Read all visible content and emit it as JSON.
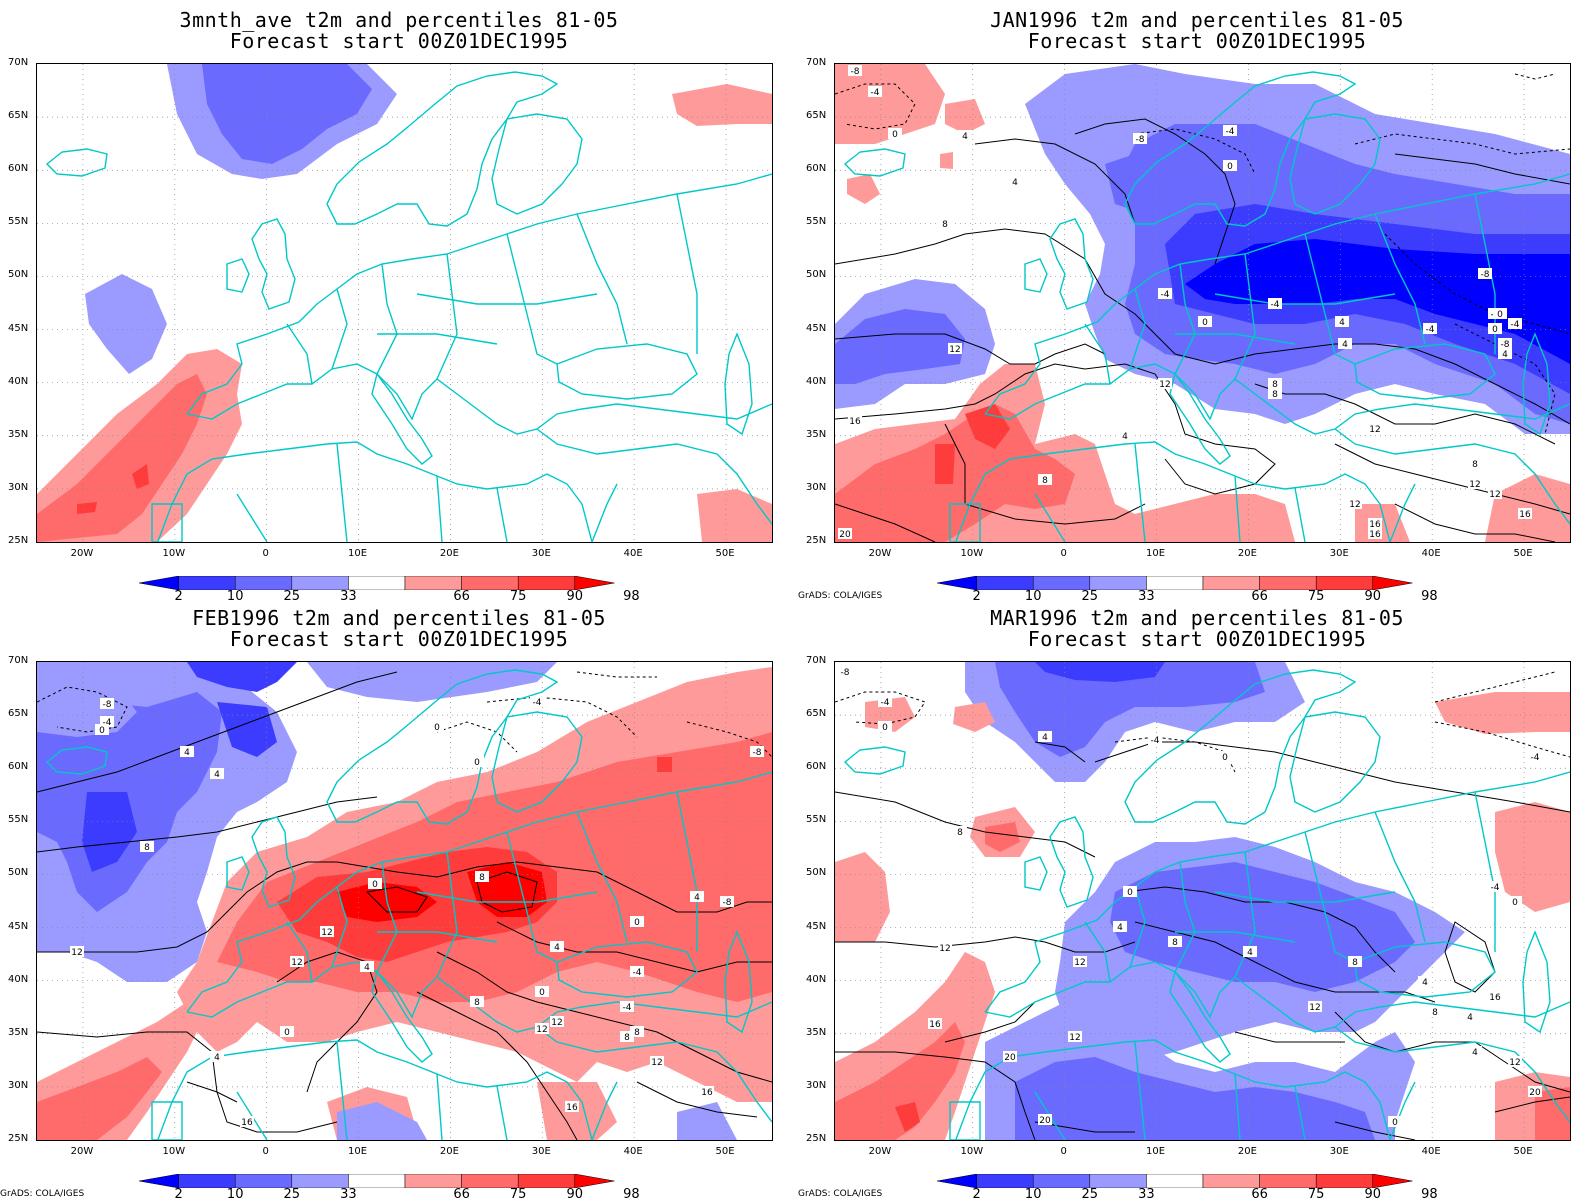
{
  "panels": [
    {
      "id": "p1",
      "title_line1": "3mnth_ave t2m and percentiles 81-05",
      "title_line2": "Forecast start 00Z01DEC1995",
      "credit": ""
    },
    {
      "id": "p2",
      "title_line1": "JAN1996 t2m and percentiles 81-05",
      "title_line2": "Forecast start 00Z01DEC1995",
      "credit": "GrADS: COLA/IGES"
    },
    {
      "id": "p3",
      "title_line1": "FEB1996 t2m and percentiles 81-05",
      "title_line2": "Forecast start 00Z01DEC1995",
      "credit": "GrADS: COLA/IGES"
    },
    {
      "id": "p4",
      "title_line1": "MAR1996 t2m and percentiles 81-05",
      "title_line2": "Forecast start 00Z01DEC1995",
      "credit": "GrADS: COLA/IGES"
    }
  ],
  "axes": {
    "lat_labels": [
      "70N",
      "65N",
      "60N",
      "55N",
      "50N",
      "45N",
      "40N",
      "35N",
      "30N",
      "25N"
    ],
    "lon_labels": [
      "20W",
      "10W",
      "0",
      "10E",
      "20E",
      "30E",
      "40E",
      "50E"
    ],
    "lat_range": [
      25,
      70
    ],
    "lon_range": [
      -25,
      55
    ]
  },
  "colorbar": {
    "labels": [
      "2",
      "10",
      "25",
      "33",
      "66",
      "75",
      "90",
      "98"
    ],
    "colors": [
      "#0000ff",
      "#3c3cff",
      "#6a6aff",
      "#9a9aff",
      "#ffffff",
      "#ff9a9a",
      "#ff6a6a",
      "#ff3c3c",
      "#ff0000"
    ]
  },
  "colors": {
    "coast": "#00c8c8",
    "contour": "#000000",
    "grid": "#888888"
  },
  "contour_labels": {
    "p2": [
      "-8",
      "-4",
      "0",
      "4",
      "-8",
      "-4",
      "0",
      "4",
      "8",
      "12",
      "-4",
      "-4",
      "0",
      "4",
      "-8",
      "-4",
      "-4",
      "0",
      "4",
      "8",
      "12",
      "16",
      "4",
      "8",
      "12",
      "-8",
      "-4",
      "0",
      "4",
      "12",
      "16",
      "8",
      "12",
      "20",
      "16",
      "16",
      "12",
      "8"
    ],
    "p3": [
      "-8",
      "-4",
      "0",
      "4",
      "4",
      "8",
      "12",
      "-8",
      "-4",
      "0",
      "0",
      "0",
      "8",
      "12",
      "12",
      "4",
      "8",
      "4",
      "0",
      "-4",
      "-4",
      "0",
      "4",
      "8",
      "12",
      "12",
      "16",
      "16",
      "-8",
      "8",
      "12",
      "16",
      "4",
      "0"
    ],
    "p4": [
      "-8",
      "-4",
      "0",
      "4",
      "-4",
      "0",
      "-4",
      "8",
      "12",
      "0",
      "4",
      "8",
      "4",
      "12",
      "16",
      "12",
      "20",
      "20",
      "0",
      "4",
      "8",
      "12",
      "16",
      "8",
      "4",
      "-4",
      "0",
      "4",
      "12",
      "20"
    ]
  }
}
